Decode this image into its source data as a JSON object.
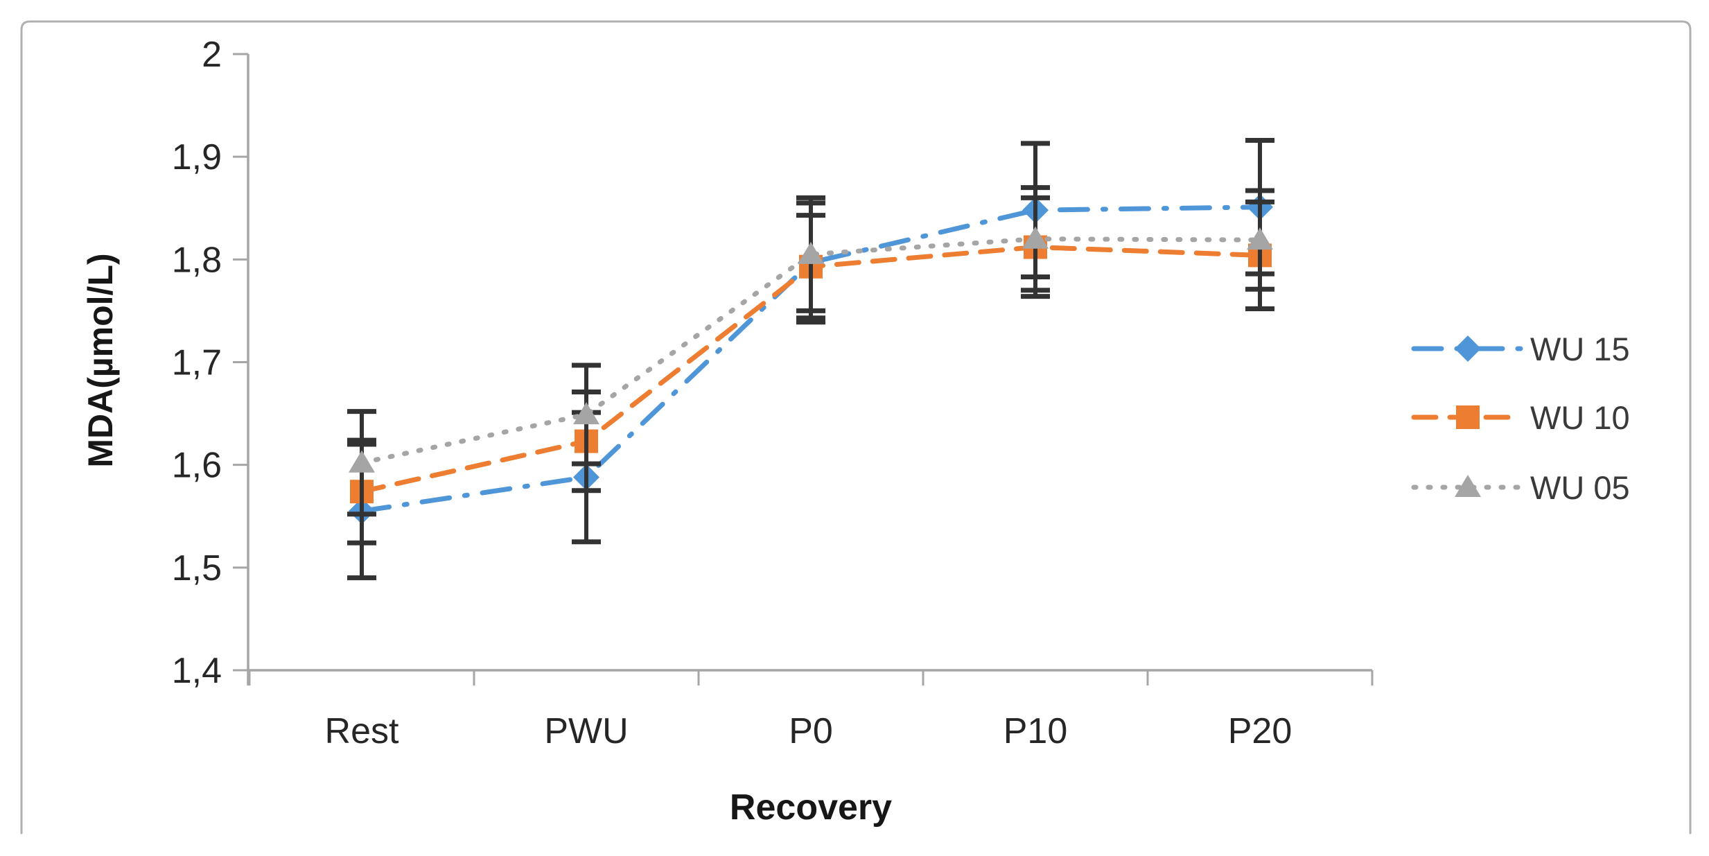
{
  "chart_data": {
    "type": "line",
    "title": "",
    "xlabel": "Recovery",
    "ylabel": "MDA(µmol/L)",
    "categories": [
      "Rest",
      "PWU",
      "P0",
      "P10",
      "P20"
    ],
    "y_tick_labels": [
      "2",
      "1,9",
      "1,8",
      "1,7",
      "1,6",
      "1,5",
      "1,4"
    ],
    "y_tick_values": [
      2.0,
      1.9,
      1.8,
      1.7,
      1.6,
      1.5,
      1.4
    ],
    "ylim": [
      1.4,
      2.0
    ],
    "decimal_separator": ",",
    "grid": "off",
    "legend_position": "right",
    "error_bars": true,
    "colors": {
      "axis_line": "#a6a6a6",
      "frame_border": "#b0b0b0",
      "error_bar": "#333333",
      "tick_label": "#262626",
      "legend_text": "#3a3a3a"
    },
    "series": [
      {
        "name": "WU 15",
        "color": "#4e96d7",
        "marker": "diamond",
        "line_style": "dash-dot",
        "values": [
          1.555,
          1.588,
          1.797,
          1.848,
          1.851
        ],
        "errors": [
          0.065,
          0.063,
          0.058,
          0.065,
          0.065
        ]
      },
      {
        "name": "WU 10",
        "color": "#ed7d31",
        "marker": "square",
        "line_style": "dashed",
        "values": [
          1.574,
          1.623,
          1.793,
          1.812,
          1.804
        ],
        "errors": [
          0.05,
          0.048,
          0.05,
          0.048,
          0.052
        ]
      },
      {
        "name": "WU 05",
        "color": "#a5a5a5",
        "marker": "triangle",
        "line_style": "dotted",
        "values": [
          1.602,
          1.649,
          1.805,
          1.82,
          1.819
        ],
        "errors": [
          0.05,
          0.048,
          0.055,
          0.05,
          0.048
        ]
      }
    ]
  }
}
